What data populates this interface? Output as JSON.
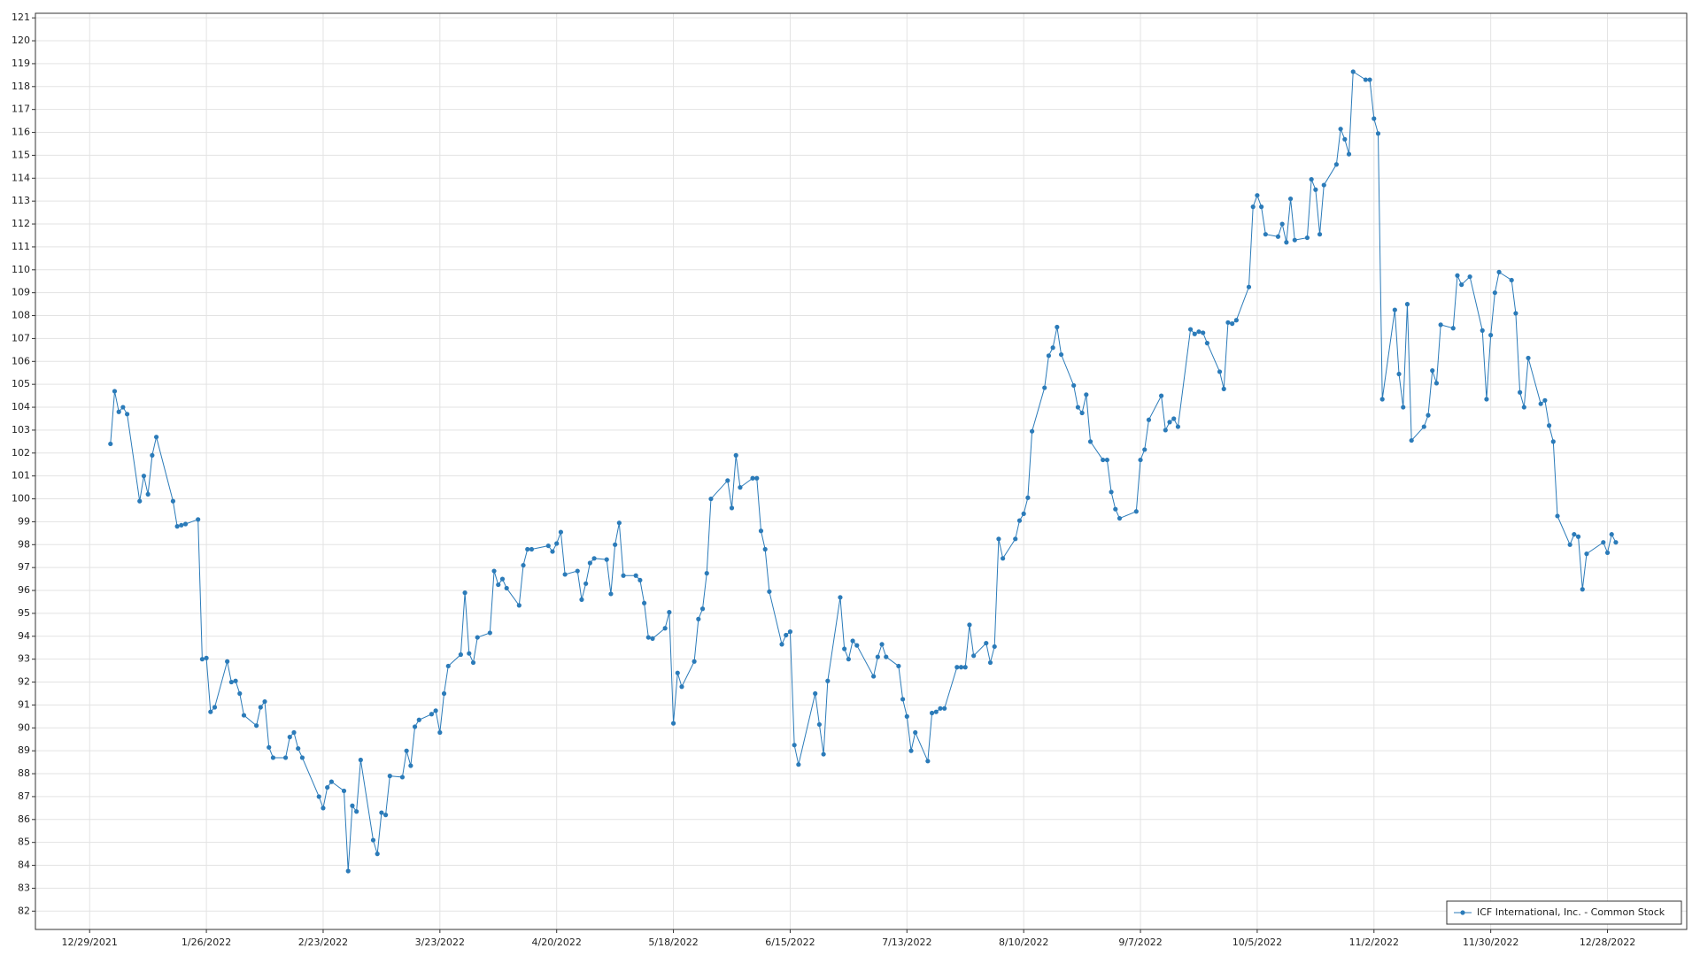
{
  "chart_data": {
    "type": "line",
    "x": [
      "1/3/2022",
      "1/4/2022",
      "1/5/2022",
      "1/6/2022",
      "1/7/2022",
      "1/10/2022",
      "1/11/2022",
      "1/12/2022",
      "1/13/2022",
      "1/14/2022",
      "1/18/2022",
      "1/19/2022",
      "1/20/2022",
      "1/21/2022",
      "1/24/2022",
      "1/25/2022",
      "1/26/2022",
      "1/27/2022",
      "1/28/2022",
      "1/31/2022",
      "2/1/2022",
      "2/2/2022",
      "2/3/2022",
      "2/4/2022",
      "2/7/2022",
      "2/8/2022",
      "2/9/2022",
      "2/10/2022",
      "2/11/2022",
      "2/14/2022",
      "2/15/2022",
      "2/16/2022",
      "2/17/2022",
      "2/18/2022",
      "2/22/2022",
      "2/23/2022",
      "2/24/2022",
      "2/25/2022",
      "2/28/2022",
      "3/1/2022",
      "3/2/2022",
      "3/3/2022",
      "3/4/2022",
      "3/7/2022",
      "3/8/2022",
      "3/9/2022",
      "3/10/2022",
      "3/11/2022",
      "3/14/2022",
      "3/15/2022",
      "3/16/2022",
      "3/17/2022",
      "3/18/2022",
      "3/21/2022",
      "3/22/2022",
      "3/23/2022",
      "3/24/2022",
      "3/25/2022",
      "3/28/2022",
      "3/29/2022",
      "3/30/2022",
      "3/31/2022",
      "4/1/2022",
      "4/4/2022",
      "4/5/2022",
      "4/6/2022",
      "4/7/2022",
      "4/8/2022",
      "4/11/2022",
      "4/12/2022",
      "4/13/2022",
      "4/14/2022",
      "4/18/2022",
      "4/19/2022",
      "4/20/2022",
      "4/21/2022",
      "4/22/2022",
      "4/25/2022",
      "4/26/2022",
      "4/27/2022",
      "4/28/2022",
      "4/29/2022",
      "5/2/2022",
      "5/3/2022",
      "5/4/2022",
      "5/5/2022",
      "5/6/2022",
      "5/9/2022",
      "5/10/2022",
      "5/11/2022",
      "5/12/2022",
      "5/13/2022",
      "5/16/2022",
      "5/17/2022",
      "5/18/2022",
      "5/19/2022",
      "5/20/2022",
      "5/23/2022",
      "5/24/2022",
      "5/25/2022",
      "5/26/2022",
      "5/27/2022",
      "5/31/2022",
      "6/1/2022",
      "6/2/2022",
      "6/3/2022",
      "6/6/2022",
      "6/7/2022",
      "6/8/2022",
      "6/9/2022",
      "6/10/2022",
      "6/13/2022",
      "6/14/2022",
      "6/15/2022",
      "6/16/2022",
      "6/17/2022",
      "6/21/2022",
      "6/22/2022",
      "6/23/2022",
      "6/24/2022",
      "6/27/2022",
      "6/28/2022",
      "6/29/2022",
      "6/30/2022",
      "7/1/2022",
      "7/5/2022",
      "7/6/2022",
      "7/7/2022",
      "7/8/2022",
      "7/11/2022",
      "7/12/2022",
      "7/13/2022",
      "7/14/2022",
      "7/15/2022",
      "7/18/2022",
      "7/19/2022",
      "7/20/2022",
      "7/21/2022",
      "7/22/2022",
      "7/25/2022",
      "7/26/2022",
      "7/27/2022",
      "7/28/2022",
      "7/29/2022",
      "8/1/2022",
      "8/2/2022",
      "8/3/2022",
      "8/4/2022",
      "8/5/2022",
      "8/8/2022",
      "8/9/2022",
      "8/10/2022",
      "8/11/2022",
      "8/12/2022",
      "8/15/2022",
      "8/16/2022",
      "8/17/2022",
      "8/18/2022",
      "8/19/2022",
      "8/22/2022",
      "8/23/2022",
      "8/24/2022",
      "8/25/2022",
      "8/26/2022",
      "8/29/2022",
      "8/30/2022",
      "8/31/2022",
      "9/1/2022",
      "9/2/2022",
      "9/6/2022",
      "9/7/2022",
      "9/8/2022",
      "9/9/2022",
      "9/12/2022",
      "9/13/2022",
      "9/14/2022",
      "9/15/2022",
      "9/16/2022",
      "9/19/2022",
      "9/20/2022",
      "9/21/2022",
      "9/22/2022",
      "9/23/2022",
      "9/26/2022",
      "9/27/2022",
      "9/28/2022",
      "9/29/2022",
      "9/30/2022",
      "10/3/2022",
      "10/4/2022",
      "10/5/2022",
      "10/6/2022",
      "10/7/2022",
      "10/10/2022",
      "10/11/2022",
      "10/12/2022",
      "10/13/2022",
      "10/14/2022",
      "10/17/2022",
      "10/18/2022",
      "10/19/2022",
      "10/20/2022",
      "10/21/2022",
      "10/24/2022",
      "10/25/2022",
      "10/26/2022",
      "10/27/2022",
      "10/28/2022",
      "10/31/2022",
      "11/1/2022",
      "11/2/2022",
      "11/3/2022",
      "11/4/2022",
      "11/7/2022",
      "11/8/2022",
      "11/9/2022",
      "11/10/2022",
      "11/11/2022",
      "11/14/2022",
      "11/15/2022",
      "11/16/2022",
      "11/17/2022",
      "11/18/2022",
      "11/21/2022",
      "11/22/2022",
      "11/23/2022",
      "11/25/2022",
      "11/28/2022",
      "11/29/2022",
      "11/30/2022",
      "12/1/2022",
      "12/2/2022",
      "12/5/2022",
      "12/6/2022",
      "12/7/2022",
      "12/8/2022",
      "12/9/2022",
      "12/12/2022",
      "12/13/2022",
      "12/14/2022",
      "12/15/2022",
      "12/16/2022",
      "12/19/2022",
      "12/20/2022",
      "12/21/2022",
      "12/22/2022",
      "12/23/2022",
      "12/27/2022",
      "12/28/2022",
      "12/29/2022",
      "12/30/2022"
    ],
    "series": [
      {
        "name": "ICF International, Inc. - Common Stock",
        "color": "#2b7bb9",
        "values": [
          102.4,
          104.7,
          103.8,
          104.0,
          103.7,
          99.9,
          101.0,
          100.2,
          101.9,
          102.7,
          99.9,
          98.8,
          98.85,
          98.9,
          99.1,
          93.0,
          93.05,
          90.7,
          90.9,
          92.9,
          92.0,
          92.05,
          91.5,
          90.55,
          90.1,
          90.9,
          91.15,
          89.15,
          88.7,
          88.7,
          89.6,
          89.8,
          89.1,
          88.7,
          87.0,
          86.5,
          87.4,
          87.65,
          87.25,
          83.75,
          86.6,
          86.35,
          88.6,
          85.1,
          84.5,
          86.3,
          86.2,
          87.9,
          87.85,
          89.0,
          88.35,
          90.05,
          90.35,
          90.6,
          90.75,
          89.8,
          91.5,
          92.7,
          93.2,
          95.9,
          93.25,
          92.85,
          93.95,
          94.15,
          96.85,
          96.25,
          96.5,
          96.1,
          95.35,
          97.1,
          97.8,
          97.8,
          97.95,
          97.7,
          98.05,
          98.55,
          96.7,
          96.85,
          95.6,
          96.3,
          97.2,
          97.4,
          97.35,
          95.85,
          98.0,
          98.95,
          96.65,
          96.65,
          96.45,
          95.45,
          93.95,
          93.9,
          94.35,
          95.05,
          90.2,
          92.4,
          91.8,
          92.9,
          94.75,
          95.2,
          96.75,
          100.0,
          100.8,
          99.6,
          101.9,
          100.5,
          100.9,
          100.9,
          98.6,
          97.8,
          95.95,
          93.65,
          94.05,
          94.2,
          89.25,
          88.4,
          91.5,
          90.15,
          88.85,
          92.05,
          95.7,
          93.45,
          93.0,
          93.8,
          93.6,
          92.25,
          93.1,
          93.65,
          93.1,
          92.7,
          91.25,
          90.5,
          89.0,
          89.8,
          88.55,
          90.65,
          90.7,
          90.85,
          90.85,
          92.65,
          92.65,
          92.65,
          94.5,
          93.15,
          93.7,
          92.85,
          93.55,
          98.25,
          97.4,
          98.25,
          99.05,
          99.35,
          100.05,
          102.95,
          104.85,
          106.25,
          106.6,
          107.5,
          106.3,
          104.95,
          104.0,
          103.75,
          104.55,
          102.5,
          101.7,
          101.7,
          100.3,
          99.55,
          99.15,
          99.45,
          101.7,
          102.15,
          103.45,
          104.5,
          103.0,
          103.35,
          103.5,
          103.15,
          107.4,
          107.2,
          107.3,
          107.25,
          106.8,
          105.55,
          104.8,
          107.7,
          107.65,
          107.8,
          109.25,
          112.75,
          113.25,
          112.75,
          111.55,
          111.45,
          112.0,
          111.2,
          113.1,
          111.3,
          111.4,
          113.95,
          113.5,
          111.55,
          113.7,
          114.6,
          116.15,
          115.7,
          115.05,
          118.65,
          118.3,
          118.3,
          116.6,
          115.95,
          104.35,
          108.25,
          105.45,
          104.0,
          108.5,
          102.55,
          103.15,
          103.65,
          105.6,
          105.05,
          107.6,
          107.45,
          109.75,
          109.35,
          109.7,
          107.35,
          104.35,
          107.15,
          109.0,
          109.9,
          109.55,
          108.1,
          104.65,
          104.0,
          106.15,
          104.15,
          104.3,
          103.2,
          102.5,
          99.25,
          98.0,
          98.45,
          98.35,
          96.05,
          97.6,
          98.1,
          97.65,
          98.45,
          98.1
        ]
      }
    ],
    "xlim": [
      "12/16/2021",
      "1/16/2023"
    ],
    "xticks": [
      "12/29/2021",
      "1/26/2022",
      "2/23/2022",
      "3/23/2022",
      "4/20/2022",
      "5/18/2022",
      "6/15/2022",
      "7/13/2022",
      "8/10/2022",
      "9/7/2022",
      "10/5/2022",
      "11/2/2022",
      "11/30/2022",
      "12/28/2022"
    ],
    "ylim": [
      81.2,
      121.2
    ],
    "yticks": [
      82,
      83,
      84,
      85,
      86,
      87,
      88,
      89,
      90,
      91,
      92,
      93,
      94,
      95,
      96,
      97,
      98,
      99,
      100,
      101,
      102,
      103,
      104,
      105,
      106,
      107,
      108,
      109,
      110,
      111,
      112,
      113,
      114,
      115,
      116,
      117,
      118,
      119,
      120,
      121
    ],
    "grid": true,
    "legend": "lower right"
  }
}
